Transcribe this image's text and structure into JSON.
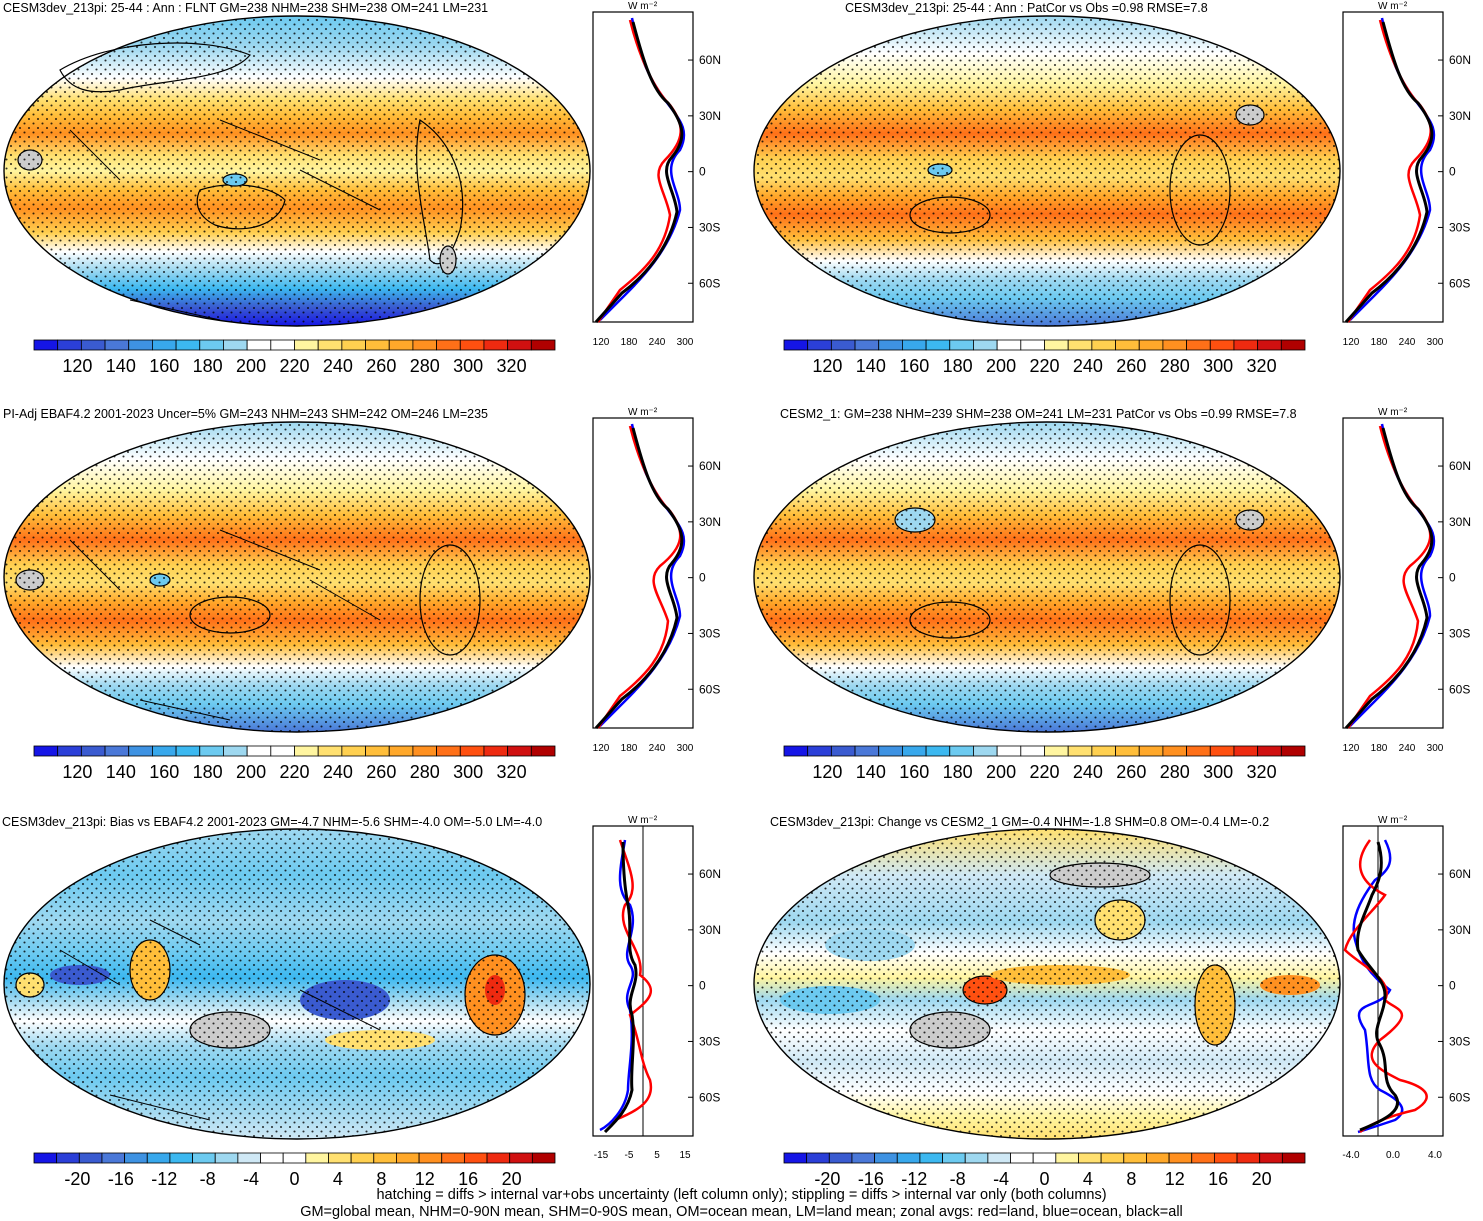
{
  "titles": {
    "p1": "CESM3dev_213pi: 25-44 : Ann : FLNT GM=238 NHM=238 SHM=238 OM=241 LM=231",
    "p2": "CESM3dev_213pi: 25-44 : Ann : PatCor vs Obs =0.98 RMSE=7.8",
    "p3": "PI-Adj EBAF4.2 2001-2023 Uncer=5% GM=243 NHM=243 SHM=242 OM=246 LM=235",
    "p4": "CESM2_1: GM=238 NHM=239 SHM=238 OM=241 LM=231 PatCor vs Obs =0.99 RMSE=7.8",
    "p5": "CESM3dev_213pi: Bias vs EBAF4.2 2001-2023 GM=-4.7 NHM=-5.6 SHM=-4.0 OM=-5.0 LM=-4.0",
    "p6": "CESM3dev_213pi: Change vs CESM2_1 GM=-0.4 NHM=-1.8 SHM=0.8 OM=-0.4 LM=-0.2"
  },
  "unit_label": "W m⁻²",
  "lat_labels": [
    "60N",
    "30N",
    "0",
    "30S",
    "60S"
  ],
  "colorbars": {
    "abs_labels": [
      "120",
      "140",
      "160",
      "180",
      "200",
      "220",
      "240",
      "260",
      "280",
      "300",
      "320"
    ],
    "abs_colors": [
      "#1515e6",
      "#2b3fd8",
      "#3a5bd0",
      "#4a78d8",
      "#3e92e2",
      "#38a8ec",
      "#3cb8f0",
      "#6ccaf0",
      "#9ed8f0",
      "#ffffff",
      "#ffffff",
      "#fff5a0",
      "#ffe070",
      "#ffd050",
      "#ffbe3a",
      "#ffa82a",
      "#ff9020",
      "#ff7018",
      "#ff5010",
      "#ee2a10",
      "#d01010",
      "#b00000"
    ],
    "diff_labels": [
      "-20",
      "-16",
      "-12",
      "-8",
      "-4",
      "0",
      "4",
      "8",
      "12",
      "16",
      "20"
    ],
    "diff_colors": [
      "#1515e6",
      "#2b3fd8",
      "#3a5bd0",
      "#4a78d8",
      "#3e92e2",
      "#38a8ec",
      "#3cb8f0",
      "#6ccaf0",
      "#9ed8f0",
      "#cfe8f5",
      "#ffffff",
      "#ffffff",
      "#fff5a0",
      "#ffe070",
      "#ffd050",
      "#ffbe3a",
      "#ffa82a",
      "#ff9020",
      "#ff7018",
      "#ff5010",
      "#ee2a10",
      "#d01010",
      "#b00000"
    ]
  },
  "zonal_axes": {
    "abs_ticks": [
      "120",
      "180",
      "240",
      "300"
    ],
    "p5_ticks": [
      "-15",
      "-5",
      "5",
      "15"
    ],
    "p6_ticks": [
      "-4.0",
      "0.0",
      "4.0"
    ]
  },
  "zonal_series_colors": {
    "land": "#ff0000",
    "ocean": "#0000ff",
    "all": "#000000"
  },
  "footer": {
    "line1": "hatching = diffs > internal var+obs uncertainty (left column only); stippling = diffs > internal var only (both columns)",
    "line2": "GM=global mean, NHM=0-90N mean, SHM=0-90S mean, OM=ocean mean, LM=land mean; zonal avgs: red=land, blue=ocean, black=all"
  }
}
